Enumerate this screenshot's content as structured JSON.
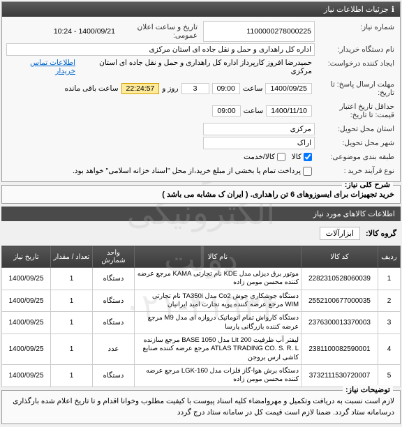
{
  "watermark": {
    "line1": "سامانه تدارکات الکترونیکی دولت",
    "line2": "۰۲۱-۴۱۹۳۴"
  },
  "panel_title": "جزئیات اطلاعات نیاز",
  "form": {
    "need_no_label": "شماره نیاز:",
    "need_no": "1100000278000225",
    "announce_label": "تاریخ و ساعت اعلان عمومی:",
    "announce_value": "1400/09/21 - 10:24",
    "buyer_label": "نام دستگاه خریدار:",
    "buyer_value": "اداره کل راهداری و حمل و نقل جاده ای استان مرکزی",
    "creator_label": "ایجاد کننده درخواست:",
    "creator_value": "حمیدرضا افروز کارپرداز اداره کل راهداری و حمل و نقل جاده ای استان مرکزی",
    "contact_link": "اطلاعات تماس خریدار",
    "deadline_label": "مهلت ارسال پاسخ: تا تاریخ:",
    "deadline_date": "1400/09/25",
    "time_lbl": "ساعت",
    "deadline_time": "09:00",
    "days": "3",
    "days_lbl": "روز و",
    "timer": "22:24:57",
    "remaining_lbl": "ساعت باقی مانده",
    "validity_label": "حداقل تاریخ اعتبار قیمت: تا تاریخ:",
    "validity_date": "1400/11/10",
    "validity_time": "09:00",
    "province_label": "استان محل تحویل:",
    "province": "مرکزی",
    "city_label": "شهر محل تحویل:",
    "city": "اراک",
    "subject_label": "طبقه بندی موضوعی:",
    "cb_product": "کالا",
    "cb_service": "کالا/خدمت",
    "process_label": "نوع فرآیند خرید :",
    "process_text": "پرداخت تمام یا بخشی از مبلغ خرید،از محل \"اسناد خزانه اسلامی\" خواهد بود."
  },
  "desc_section": {
    "legend": "شرح کلی نیاز:",
    "text": "خرید تجهیزات برای ایسوزوهای 6 تن راهداری. ( ایران ک مشابه می باشد )"
  },
  "items_header": "اطلاعات کالاهای مورد نیاز",
  "group": {
    "label": "گروه کالا:",
    "value": "ابزارآلات"
  },
  "table": {
    "headers": [
      "ردیف",
      "کد کالا",
      "نام کالا",
      "واحد شمارش",
      "تعداد / مقدار",
      "تاریخ نیاز"
    ],
    "rows": [
      {
        "idx": "1",
        "code": "2282310528060039",
        "name": "موتور برق دیزلی مدل KDE نام تجارتی KAMA مرجع عرضه کننده محسن مومن زاده",
        "unit": "دستگاه",
        "qty": "1",
        "date": "1400/09/25"
      },
      {
        "idx": "2",
        "code": "2552100677000035",
        "name": "دستگاه جوشکاری جوش Co2 مدل TA350i نام تجارتی WIM مرجع عرضه کننده پویه تجارت امید ایرانیان",
        "unit": "دستگاه",
        "qty": "1",
        "date": "1400/09/25"
      },
      {
        "idx": "3",
        "code": "2376300013370003",
        "name": "دستگاه کارواش تمام اتوماتیک دروازه ای مدل M9 مرجع عرضه کننده بازرگانی پارسا",
        "unit": "دستگاه",
        "qty": "1",
        "date": "1400/09/25"
      },
      {
        "idx": "4",
        "code": "2381100082590001",
        "name": "لیفتر آب ظرفیت 200 Lit مدل BASE 1050 مرجع سازنده ATLAS TRADING CO. S. R. L مرجع عرضه کننده صنایع کاشی ارس بروجن",
        "unit": "عدد",
        "qty": "1",
        "date": "1400/09/25"
      },
      {
        "idx": "5",
        "code": "3732111530720007",
        "name": "دستگاه برش هوا-گاز فلزات مدل LGK-160 مرجع عرضه کننده محسن مومن زاده",
        "unit": "دستگاه",
        "qty": "1",
        "date": "1400/09/25"
      }
    ]
  },
  "notes": {
    "legend": "توضیحات نیاز:",
    "text": "لازم است نسبت به دریافت وتکمیل و مهروامضاء کلیه اسناد پیوست با کیفیت مطلوب وخوانا اقدام و تا تاریخ اعلام شده بارگذاری درسامانه ستاد گردد. ضمنا لازم است قیمت کل در سامانه ستاد درج گردد"
  }
}
